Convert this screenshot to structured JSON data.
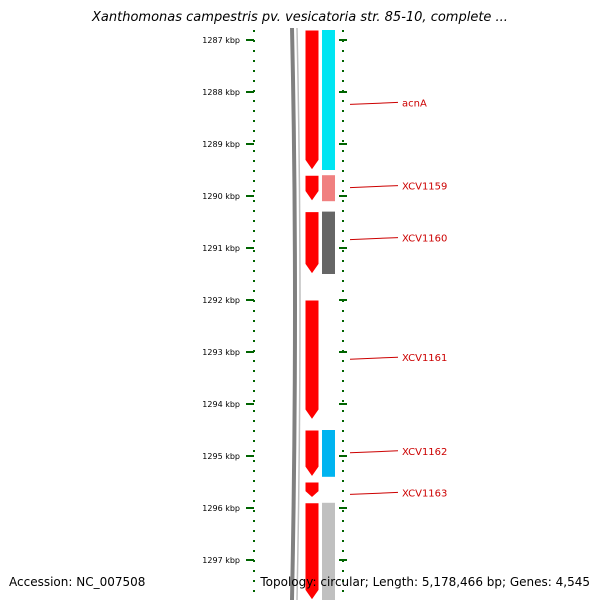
{
  "title": "Xanthomonas campestris pv. vesicatoria str. 85-10, complete ...",
  "footer": {
    "accession": "Accession: NC_007508",
    "summary": "Topology: circular; Length: 5,178,466 bp; Genes: 4,545"
  },
  "ruler": {
    "ticks": [
      {
        "kbp": 1287,
        "label": "1287 kbp"
      },
      {
        "kbp": 1288,
        "label": "1288 kbp"
      },
      {
        "kbp": 1289,
        "label": "1289 kbp"
      },
      {
        "kbp": 1290,
        "label": "1290 kbp"
      },
      {
        "kbp": 1291,
        "label": "1291 kbp"
      },
      {
        "kbp": 1292,
        "label": "1292 kbp"
      },
      {
        "kbp": 1293,
        "label": "1293 kbp"
      },
      {
        "kbp": 1294,
        "label": "1294 kbp"
      },
      {
        "kbp": 1295,
        "label": "1295 kbp"
      },
      {
        "kbp": 1296,
        "label": "1296 kbp"
      },
      {
        "kbp": 1297,
        "label": "1297 kbp"
      }
    ]
  },
  "features": [
    {
      "start": 1286.6,
      "end": 1289.5,
      "cds_color": "#ff0000",
      "gene_color": "#00e5f2",
      "label": "acnA",
      "label_kbp": 1288.2
    },
    {
      "start": 1289.6,
      "end": 1290.1,
      "cds_color": "#ff0000",
      "gene_color": "#f08080",
      "label": "XCV1159",
      "label_kbp": 1289.8
    },
    {
      "start": 1290.3,
      "end": 1291.5,
      "cds_color": "#ff0000",
      "gene_color": "#666666",
      "label": "XCV1160",
      "label_kbp": 1290.8
    },
    {
      "start": 1292.0,
      "end": 1294.3,
      "cds_color": "#ff0000",
      "gene_color": null,
      "label": "XCV1161",
      "label_kbp": 1293.1
    },
    {
      "start": 1294.5,
      "end": 1295.4,
      "cds_color": "#ff0000",
      "gene_color": "#00b4f0",
      "label": "XCV1162",
      "label_kbp": 1294.9
    },
    {
      "start": 1295.5,
      "end": 1295.8,
      "cds_color": "#ff0000",
      "gene_color": null,
      "label": "XCV1163",
      "label_kbp": 1295.7
    },
    {
      "start": 1295.9,
      "end": 1298.0,
      "cds_color": "#ff0000",
      "gene_color": "#c0c0c0",
      "label": "",
      "label_kbp": null
    }
  ],
  "colors": {
    "tick": "#006400",
    "label": "#cc0000",
    "backbone": "#808080"
  }
}
